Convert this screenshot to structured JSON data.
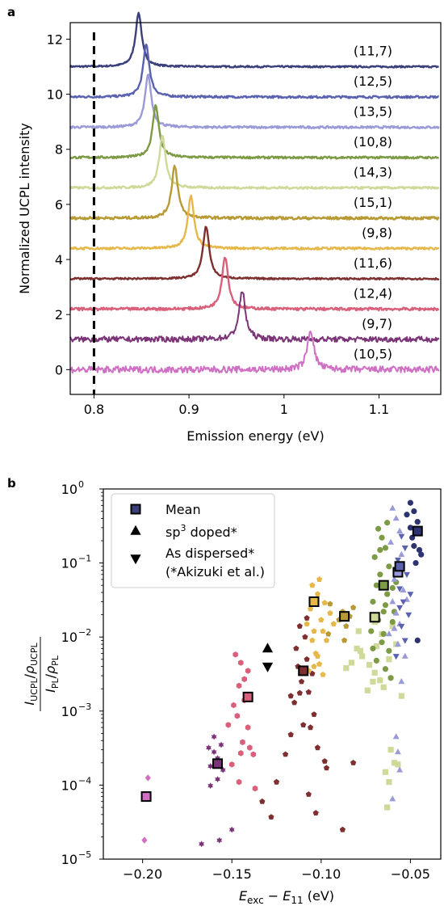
{
  "chart_data": [
    {
      "panel_label": "a",
      "type": "line",
      "xlabel": "Emission energy (eV)",
      "ylabel": "Normalized UCPL intensity",
      "xlim": [
        0.775,
        1.165
      ],
      "ylim": [
        -0.9,
        12.6
      ],
      "xticks": [
        0.8,
        0.9,
        1.0,
        1.1
      ],
      "yticks": [
        0,
        2,
        4,
        6,
        8,
        10,
        12
      ],
      "dashed_vline_x": 0.8,
      "series": [
        {
          "name": "(11,7)",
          "baseline": 11.0,
          "peak_x": 0.847,
          "peak_height": 1.95,
          "color": "#3b3f7a",
          "noise": 0.03
        },
        {
          "name": "(12,5)",
          "baseline": 9.9,
          "peak_x": 0.855,
          "peak_height": 1.9,
          "color": "#5a62b0",
          "noise": 0.04
        },
        {
          "name": "(13,5)",
          "baseline": 8.8,
          "peak_x": 0.857,
          "peak_height": 1.9,
          "color": "#9a9ad8",
          "noise": 0.04
        },
        {
          "name": "(10,8)",
          "baseline": 7.7,
          "peak_x": 0.865,
          "peak_height": 1.9,
          "color": "#7d9a45",
          "noise": 0.04
        },
        {
          "name": "(14,3)",
          "baseline": 6.6,
          "peak_x": 0.872,
          "peak_height": 1.9,
          "color": "#cfd99a",
          "noise": 0.04
        },
        {
          "name": "(15,1)",
          "baseline": 5.5,
          "peak_x": 0.885,
          "peak_height": 1.9,
          "color": "#b89a35",
          "noise": 0.05
        },
        {
          "name": "(9,8)",
          "baseline": 4.4,
          "peak_x": 0.902,
          "peak_height": 1.9,
          "color": "#e6b84a",
          "noise": 0.04
        },
        {
          "name": "(11,6)",
          "baseline": 3.3,
          "peak_x": 0.918,
          "peak_height": 1.9,
          "color": "#7e2f2f",
          "noise": 0.03
        },
        {
          "name": "(12,4)",
          "baseline": 2.2,
          "peak_x": 0.938,
          "peak_height": 1.9,
          "color": "#d8607a",
          "noise": 0.05
        },
        {
          "name": "(9,7)",
          "baseline": 1.1,
          "peak_x": 0.956,
          "peak_height": 1.75,
          "color": "#7b3478",
          "noise": 0.1
        },
        {
          "name": "(10,5)",
          "baseline": 0.0,
          "peak_x": 1.028,
          "peak_height": 1.45,
          "color": "#d070c4",
          "noise": 0.12
        }
      ]
    },
    {
      "panel_label": "b",
      "type": "scatter",
      "xlabel": "E_exc − E_11 (eV)",
      "ylabel": "(I_UCPL/ρ_UCPL) / (I_PL/ρ_PL)",
      "y_scale": "log",
      "xlim": [
        -0.222,
        -0.033
      ],
      "ylim": [
        1e-05,
        1
      ],
      "xticks": [
        -0.2,
        -0.15,
        -0.1,
        -0.05
      ],
      "legend": {
        "placement": "upper-left",
        "entries": [
          "Mean",
          "sp3 doped*",
          "As dispersed*",
          "(*Akizuki et al.)"
        ]
      },
      "groups": [
        {
          "color": "#d070c4",
          "marker": "diamond",
          "points": [
            [
              -0.197,
              0.000125
            ],
            [
              -0.199,
              1.8e-05
            ]
          ],
          "mean": [
            -0.198,
            7e-05
          ]
        },
        {
          "color": "#7b3478",
          "marker": "hexagram",
          "points": [
            [
              -0.16,
              0.00028
            ],
            [
              -0.158,
              0.00023
            ],
            [
              -0.162,
              0.00018
            ],
            [
              -0.155,
              0.00016
            ],
            [
              -0.158,
              0.00012
            ],
            [
              -0.163,
              0.00032
            ],
            [
              -0.15,
              2.5e-05
            ],
            [
              -0.157,
              1.8e-05
            ],
            [
              -0.167,
              1.6e-05
            ],
            [
              -0.16,
              0.00045
            ],
            [
              -0.156,
              0.00035
            ],
            [
              -0.162,
              9.8e-05
            ]
          ],
          "mean": [
            -0.158,
            0.000195
          ]
        },
        {
          "color": "#d8607a",
          "marker": "hexagon",
          "points": [
            [
              -0.148,
              0.0058
            ],
            [
              -0.145,
              0.0045
            ],
            [
              -0.143,
              0.0027
            ],
            [
              -0.146,
              0.0022
            ],
            [
              -0.142,
              0.0016
            ],
            [
              -0.149,
              0.0012
            ],
            [
              -0.147,
              0.00086
            ],
            [
              -0.141,
              0.0006
            ],
            [
              -0.144,
              0.00038
            ],
            [
              -0.138,
              0.00026
            ],
            [
              -0.15,
              0.00019
            ],
            [
              -0.146,
              0.00011
            ],
            [
              -0.14,
              0.00032
            ],
            [
              -0.152,
              0.00065
            ],
            [
              -0.137,
              9e-05
            ],
            [
              -0.143,
              0.0014
            ],
            [
              -0.145,
              0.00027
            ],
            [
              -0.141,
              0.0035
            ]
          ],
          "mean": [
            -0.141,
            0.00155
          ]
        },
        {
          "color": "#7e2f2f",
          "marker": "pentagon",
          "points": [
            [
              -0.112,
              0.014
            ],
            [
              -0.109,
              0.01
            ],
            [
              -0.114,
              0.007
            ],
            [
              -0.108,
              0.005
            ],
            [
              -0.113,
              0.004
            ],
            [
              -0.105,
              0.0032
            ],
            [
              -0.111,
              0.0025
            ],
            [
              -0.107,
              0.0018
            ],
            [
              -0.115,
              0.0013
            ],
            [
              -0.104,
              0.0009
            ],
            [
              -0.11,
              0.00065
            ],
            [
              -0.117,
              0.00048
            ],
            [
              -0.102,
              0.00032
            ],
            [
              -0.098,
              0.00021
            ],
            [
              -0.12,
              0.00026
            ],
            [
              -0.125,
              0.00011
            ],
            [
              -0.133,
              6e-05
            ],
            [
              -0.128,
              3.7e-05
            ],
            [
              -0.103,
              4.2e-05
            ],
            [
              -0.097,
              0.00017
            ],
            [
              -0.082,
              0.0002
            ],
            [
              -0.088,
              2.5e-05
            ],
            [
              -0.107,
              7.5e-05
            ],
            [
              -0.117,
              0.0016
            ],
            [
              -0.112,
              0.00175
            ],
            [
              -0.108,
              0.018
            ],
            [
              -0.106,
              0.0006
            ]
          ],
          "mean": [
            -0.11,
            0.0035
          ]
        },
        {
          "color": "#e6b84a",
          "marker": "pentagon",
          "points": [
            [
              -0.105,
              0.05
            ],
            [
              -0.102,
              0.038
            ],
            [
              -0.098,
              0.029
            ],
            [
              -0.106,
              0.024
            ],
            [
              -0.1,
              0.017
            ],
            [
              -0.104,
              0.012
            ],
            [
              -0.097,
              0.009
            ],
            [
              -0.103,
              0.006
            ],
            [
              -0.101,
              0.0043
            ],
            [
              -0.107,
              0.0035
            ],
            [
              -0.099,
              0.0031
            ],
            [
              -0.095,
              0.021
            ],
            [
              -0.093,
              0.015
            ],
            [
              -0.108,
              0.015
            ],
            [
              -0.105,
              0.009
            ],
            [
              -0.102,
              0.0055
            ],
            [
              -0.104,
              0.004
            ],
            [
              -0.099,
              0.012
            ],
            [
              -0.101,
              0.06
            ]
          ],
          "mean": [
            -0.104,
            0.03
          ]
        },
        {
          "color": "#b89a35",
          "marker": "pentagon",
          "points": [
            [
              -0.095,
              0.028
            ],
            [
              -0.088,
              0.022
            ],
            [
              -0.084,
              0.019
            ],
            [
              -0.086,
              0.014
            ],
            [
              -0.09,
              0.017
            ],
            [
              -0.082,
              0.025
            ],
            [
              -0.087,
              0.009
            ],
            [
              -0.096,
              0.011
            ]
          ],
          "mean": [
            -0.087,
            0.019
          ]
        },
        {
          "color": "#cfd99a",
          "marker": "square",
          "points": [
            [
              -0.08,
              0.007
            ],
            [
              -0.077,
              0.0055
            ],
            [
              -0.073,
              0.0042
            ],
            [
              -0.07,
              0.0033
            ],
            [
              -0.067,
              0.0026
            ],
            [
              -0.065,
              0.0021
            ],
            [
              -0.062,
              0.005
            ],
            [
              -0.06,
              0.014
            ],
            [
              -0.058,
              0.008
            ],
            [
              -0.066,
              0.011
            ],
            [
              -0.07,
              0.016
            ],
            [
              -0.074,
              0.0019
            ],
            [
              -0.083,
              0.0045
            ],
            [
              -0.086,
              0.0038
            ],
            [
              -0.079,
              0.012
            ],
            [
              -0.064,
              0.00015
            ],
            [
              -0.059,
              0.0002
            ],
            [
              -0.061,
              0.0003
            ],
            [
              -0.057,
              0.00019
            ],
            [
              -0.062,
              0.00011
            ],
            [
              -0.063,
              5e-05
            ],
            [
              -0.055,
              0.0016
            ],
            [
              -0.071,
              0.0025
            ],
            [
              -0.069,
              0.0075
            ],
            [
              -0.078,
              0.0065
            ]
          ],
          "mean": [
            -0.07,
            0.0185
          ]
        },
        {
          "color": "#7d9a45",
          "marker": "circle",
          "points": [
            [
              -0.068,
              0.29
            ],
            [
              -0.066,
              0.22
            ],
            [
              -0.064,
              0.16
            ],
            [
              -0.07,
              0.12
            ],
            [
              -0.062,
              0.09
            ],
            [
              -0.067,
              0.07
            ],
            [
              -0.069,
              0.05
            ],
            [
              -0.063,
              0.038
            ],
            [
              -0.071,
              0.03
            ],
            [
              -0.065,
              0.022
            ],
            [
              -0.06,
              0.016
            ],
            [
              -0.072,
              0.012
            ],
            [
              -0.066,
              0.0085
            ],
            [
              -0.062,
              0.0065
            ],
            [
              -0.069,
              0.0048
            ],
            [
              -0.064,
              0.0037
            ],
            [
              -0.061,
              0.0028
            ],
            [
              -0.059,
              0.022
            ],
            [
              -0.058,
              0.055
            ],
            [
              -0.067,
              0.15
            ],
            [
              -0.063,
              0.35
            ],
            [
              -0.071,
              0.007
            ],
            [
              -0.068,
              0.017
            ],
            [
              -0.065,
              0.011
            ],
            [
              -0.06,
              0.046
            ],
            [
              -0.064,
              0.027
            ]
          ],
          "mean": [
            -0.065,
            0.05
          ]
        },
        {
          "color": "#9a9ad8",
          "marker": "triangle-up",
          "points": [
            [
              -0.06,
              0.55
            ],
            [
              -0.058,
              0.4
            ],
            [
              -0.056,
              0.27
            ],
            [
              -0.061,
              0.19
            ],
            [
              -0.055,
              0.13
            ],
            [
              -0.057,
              0.09
            ],
            [
              -0.059,
              0.06
            ],
            [
              -0.054,
              0.043
            ],
            [
              -0.06,
              0.03
            ],
            [
              -0.058,
              0.021
            ],
            [
              -0.056,
              0.015
            ],
            [
              -0.062,
              0.011
            ],
            [
              -0.057,
              0.008
            ],
            [
              -0.053,
              0.0055
            ],
            [
              -0.055,
              0.0025
            ],
            [
              -0.058,
              0.00045
            ],
            [
              -0.057,
              0.00028
            ],
            [
              -0.056,
              0.00016
            ],
            [
              -0.06,
              6.5e-05
            ],
            [
              -0.052,
              0.032
            ],
            [
              -0.059,
              0.013
            ]
          ],
          "mean": [
            -0.057,
            0.075
          ]
        },
        {
          "color": "#5a62b0",
          "marker": "triangle-down",
          "points": [
            [
              -0.055,
              0.23
            ],
            [
              -0.053,
              0.16
            ],
            [
              -0.057,
              0.11
            ],
            [
              -0.052,
              0.07
            ],
            [
              -0.056,
              0.045
            ],
            [
              -0.054,
              0.03
            ],
            [
              -0.051,
              0.02
            ],
            [
              -0.055,
              0.014
            ],
            [
              -0.053,
              0.009
            ],
            [
              -0.058,
              0.0055
            ],
            [
              -0.05,
              0.038
            ],
            [
              -0.056,
              0.025
            ]
          ],
          "mean": [
            -0.056,
            0.09
          ]
        },
        {
          "color": "#2d3370",
          "marker": "circle",
          "points": [
            [
              -0.05,
              0.65
            ],
            [
              -0.048,
              0.5
            ],
            [
              -0.046,
              0.36
            ],
            [
              -0.049,
              0.22
            ],
            [
              -0.045,
              0.15
            ],
            [
              -0.047,
              0.1
            ],
            [
              -0.044,
              0.13
            ],
            [
              -0.05,
              0.3
            ],
            [
              -0.046,
              0.009
            ],
            [
              -0.052,
              0.45
            ],
            [
              -0.048,
              0.17
            ]
          ],
          "mean": [
            -0.046,
            0.27
          ]
        },
        {
          "color": "#000000",
          "marker": "triangle-up",
          "points": [
            [
              -0.13,
              0.007
            ]
          ]
        },
        {
          "color": "#000000",
          "marker": "triangle-down",
          "points": [
            [
              -0.13,
              0.004
            ]
          ]
        }
      ]
    }
  ]
}
